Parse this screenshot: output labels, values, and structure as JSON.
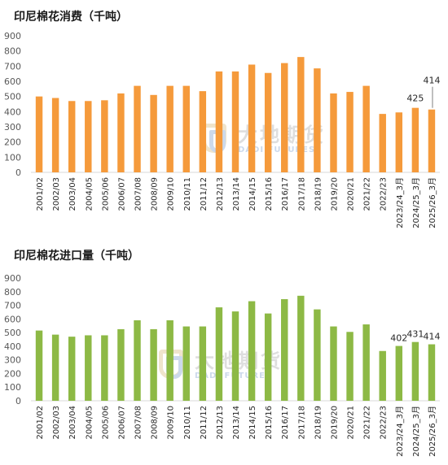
{
  "chart_data": [
    {
      "type": "bar",
      "title": "印尼棉花消费（千吨）",
      "color": "#F59A3B",
      "ylim": [
        0,
        900
      ],
      "yticks": [
        0,
        100,
        200,
        300,
        400,
        500,
        600,
        700,
        800,
        900
      ],
      "grid": false,
      "categories": [
        "2001/02",
        "2002/03",
        "2003/04",
        "2004/05",
        "2005/06",
        "2006/07",
        "2007/08",
        "2008/09",
        "2009/10",
        "2010/11",
        "2011/12",
        "2012/13",
        "2013/14",
        "2014/15",
        "2015/16",
        "2016/17",
        "2017/18",
        "2018/19",
        "2019/20",
        "2020/21",
        "2021/22",
        "2022/23",
        "2023/24_3月",
        "2024/25_3月",
        "2025/26_3月"
      ],
      "values": [
        500,
        490,
        470,
        470,
        475,
        520,
        570,
        510,
        570,
        570,
        535,
        665,
        665,
        710,
        655,
        720,
        760,
        685,
        520,
        530,
        570,
        385,
        395,
        425,
        414
      ],
      "data_labels": [
        {
          "index": 23,
          "text": "425"
        },
        {
          "index": 24,
          "text": "414"
        }
      ]
    },
    {
      "type": "bar",
      "title": "印尼棉花进口量（千吨）",
      "color": "#8DB945",
      "ylim": [
        0,
        900
      ],
      "yticks": [
        0,
        100,
        200,
        300,
        400,
        500,
        600,
        700,
        800,
        900
      ],
      "grid": false,
      "categories": [
        "2001/02",
        "2002/03",
        "2003/04",
        "2004/05",
        "2005/06",
        "2006/07",
        "2007/08",
        "2008/09",
        "2009/10",
        "2010/11",
        "2011/12",
        "2012/13",
        "2013/14",
        "2014/15",
        "2015/16",
        "2016/17",
        "2017/18",
        "2018/19",
        "2019/20",
        "2020/21",
        "2021/22",
        "2022/23",
        "2023/24_3月",
        "2024/25_3月",
        "2025/26_3月"
      ],
      "values": [
        515,
        485,
        470,
        480,
        480,
        525,
        590,
        525,
        590,
        545,
        545,
        685,
        655,
        730,
        640,
        745,
        770,
        670,
        545,
        505,
        560,
        365,
        402,
        431,
        414
      ],
      "data_labels": [
        {
          "index": 22,
          "text": "402"
        },
        {
          "index": 23,
          "text": "431"
        },
        {
          "index": 24,
          "text": "414"
        }
      ]
    }
  ],
  "watermark": {
    "cn": "大地期货",
    "en": "DADI FUTURES"
  }
}
